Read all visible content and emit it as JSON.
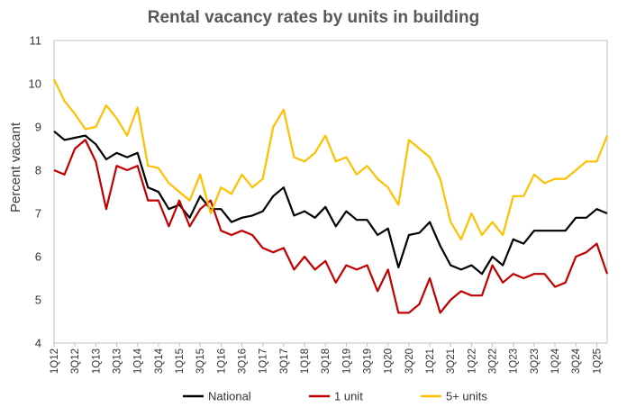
{
  "chart_data": {
    "type": "line",
    "title": "Rental vacancy rates by units in building",
    "xlabel": "",
    "ylabel": "Percent vacant",
    "ylim": [
      4,
      11
    ],
    "yticks": [
      4,
      5,
      6,
      7,
      8,
      9,
      10,
      11
    ],
    "grid": false,
    "legend_position": "bottom",
    "xtick_labels": [
      "1Q12",
      "3Q12",
      "1Q13",
      "3Q13",
      "1Q14",
      "3Q14",
      "1Q15",
      "3Q15",
      "1Q16",
      "3Q16",
      "1Q17",
      "3Q17",
      "1Q18",
      "3Q18",
      "1Q19",
      "3Q19",
      "1Q20",
      "3Q20",
      "1Q21",
      "3Q21",
      "1Q22",
      "3Q22",
      "1Q23",
      "3Q23",
      "1Q24",
      "3Q24",
      "1Q25"
    ],
    "x": [
      "1Q12",
      "2Q12",
      "3Q12",
      "4Q12",
      "1Q13",
      "2Q13",
      "3Q13",
      "4Q13",
      "1Q14",
      "2Q14",
      "3Q14",
      "4Q14",
      "1Q15",
      "2Q15",
      "3Q15",
      "4Q15",
      "1Q16",
      "2Q16",
      "3Q16",
      "4Q16",
      "1Q17",
      "2Q17",
      "3Q17",
      "4Q17",
      "1Q18",
      "2Q18",
      "3Q18",
      "4Q18",
      "1Q19",
      "2Q19",
      "3Q19",
      "4Q19",
      "1Q20",
      "2Q20",
      "3Q20",
      "4Q20",
      "1Q21",
      "2Q21",
      "3Q21",
      "4Q21",
      "1Q22",
      "2Q22",
      "3Q22",
      "4Q22",
      "1Q23",
      "2Q23",
      "3Q23",
      "4Q23",
      "1Q24",
      "2Q24",
      "3Q24",
      "4Q24",
      "1Q25",
      "2Q25"
    ],
    "series": [
      {
        "name": "National",
        "color": "#000000",
        "values": [
          8.9,
          8.7,
          8.75,
          8.8,
          8.6,
          8.25,
          8.4,
          8.3,
          8.4,
          7.6,
          7.5,
          7.1,
          7.2,
          6.9,
          7.4,
          7.1,
          7.1,
          6.8,
          6.9,
          6.95,
          7.05,
          7.4,
          7.6,
          6.95,
          7.05,
          6.9,
          7.15,
          6.7,
          7.05,
          6.85,
          6.85,
          6.5,
          6.65,
          5.75,
          6.5,
          6.55,
          6.8,
          6.25,
          5.8,
          5.7,
          5.8,
          5.6,
          6.0,
          5.8,
          6.4,
          6.3,
          6.6,
          6.6,
          6.6,
          6.6,
          6.9,
          6.9,
          7.1,
          7.0
        ]
      },
      {
        "name": "1 unit",
        "color": "#c00000",
        "values": [
          8.0,
          7.9,
          8.5,
          8.7,
          8.2,
          7.1,
          8.1,
          8.0,
          8.1,
          7.3,
          7.3,
          6.7,
          7.3,
          6.7,
          7.1,
          7.3,
          6.6,
          6.5,
          6.6,
          6.5,
          6.2,
          6.1,
          6.2,
          5.7,
          6.0,
          5.7,
          5.9,
          5.4,
          5.8,
          5.7,
          5.8,
          5.2,
          5.7,
          4.7,
          4.7,
          4.9,
          5.5,
          4.7,
          5.0,
          5.2,
          5.1,
          5.1,
          5.8,
          5.4,
          5.6,
          5.5,
          5.6,
          5.6,
          5.3,
          5.4,
          6.0,
          6.1,
          6.3,
          5.6
        ]
      },
      {
        "name": "5+ units",
        "color": "#ffc000",
        "values": [
          10.1,
          9.6,
          9.3,
          8.95,
          9.0,
          9.5,
          9.2,
          8.8,
          9.45,
          8.1,
          8.05,
          7.7,
          7.5,
          7.3,
          7.9,
          7.0,
          7.6,
          7.45,
          7.9,
          7.6,
          7.8,
          9.0,
          9.4,
          8.3,
          8.2,
          8.4,
          8.8,
          8.2,
          8.3,
          7.9,
          8.1,
          7.8,
          7.6,
          7.2,
          8.7,
          8.5,
          8.3,
          7.8,
          6.8,
          6.4,
          7.0,
          6.5,
          6.8,
          6.5,
          7.4,
          7.4,
          7.9,
          7.7,
          7.8,
          7.8,
          8.0,
          8.2,
          8.2,
          8.8
        ]
      }
    ]
  }
}
